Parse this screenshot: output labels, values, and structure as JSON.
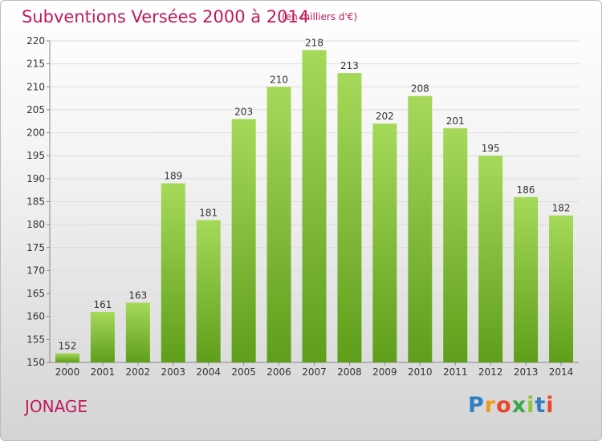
{
  "header": {
    "title": "Subventions Versées 2000 à 2014",
    "subtitle": "(en milliers d'€)"
  },
  "footer": {
    "city": "JONAGE",
    "logo_text": "Proxiti",
    "logo_letters": [
      "P",
      "r",
      "o",
      "x",
      "i",
      "t",
      "i"
    ]
  },
  "colors": {
    "title": "#c2185b",
    "bar_top": "#a6d95a",
    "bar_bottom": "#5e9e1a",
    "grid": "#dcdcdc"
  },
  "chart_data": {
    "type": "bar",
    "categories": [
      "2000",
      "2001",
      "2002",
      "2003",
      "2004",
      "2005",
      "2006",
      "2007",
      "2008",
      "2009",
      "2010",
      "2011",
      "2012",
      "2013",
      "2014"
    ],
    "values": [
      152,
      161,
      163,
      189,
      181,
      203,
      210,
      218,
      213,
      202,
      208,
      201,
      195,
      186,
      182
    ],
    "title": "Subventions Versées 2000 à 2014",
    "unit": "(en milliers d'€)",
    "ylim": [
      150,
      220
    ],
    "yticks": [
      150,
      155,
      160,
      165,
      170,
      175,
      180,
      185,
      190,
      195,
      200,
      205,
      210,
      215,
      220
    ],
    "grid": true,
    "legend": "none"
  }
}
